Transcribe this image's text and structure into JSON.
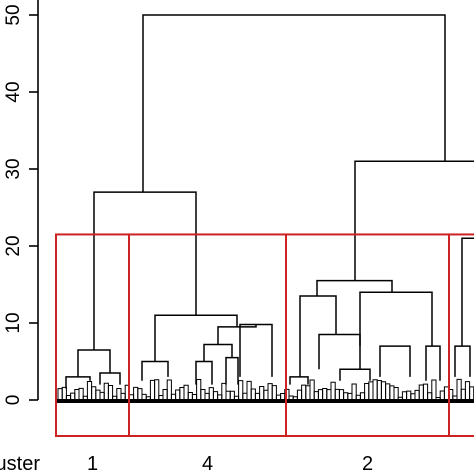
{
  "chart_data": {
    "type": "dendrogram",
    "ylim": [
      0,
      52
    ],
    "yticks": [
      {
        "value": 0,
        "label": "0"
      },
      {
        "value": 10,
        "label": "10"
      },
      {
        "value": 20,
        "label": "20"
      },
      {
        "value": 30,
        "label": "30"
      },
      {
        "value": 40,
        "label": "40"
      },
      {
        "value": 50,
        "label": "50"
      }
    ],
    "cut_height": 21.5,
    "box_color": "#cc2222",
    "row_label": "Cluster",
    "clusters": [
      {
        "id": "1",
        "label": "1",
        "range": [
          0,
          1
        ]
      },
      {
        "id": "4",
        "label": "4",
        "range": [
          1,
          2
        ]
      },
      {
        "id": "2",
        "label": "2",
        "range": [
          2,
          3
        ]
      },
      {
        "id": "3",
        "label": "",
        "range": [
          3,
          4
        ]
      }
    ],
    "merges": [
      {
        "left": "C1",
        "right": "C4",
        "height": 27.0
      },
      {
        "left": "C2",
        "right": "C3",
        "height": 31.0
      },
      {
        "left": "G14",
        "right": "G23",
        "height": 50.0
      }
    ]
  }
}
